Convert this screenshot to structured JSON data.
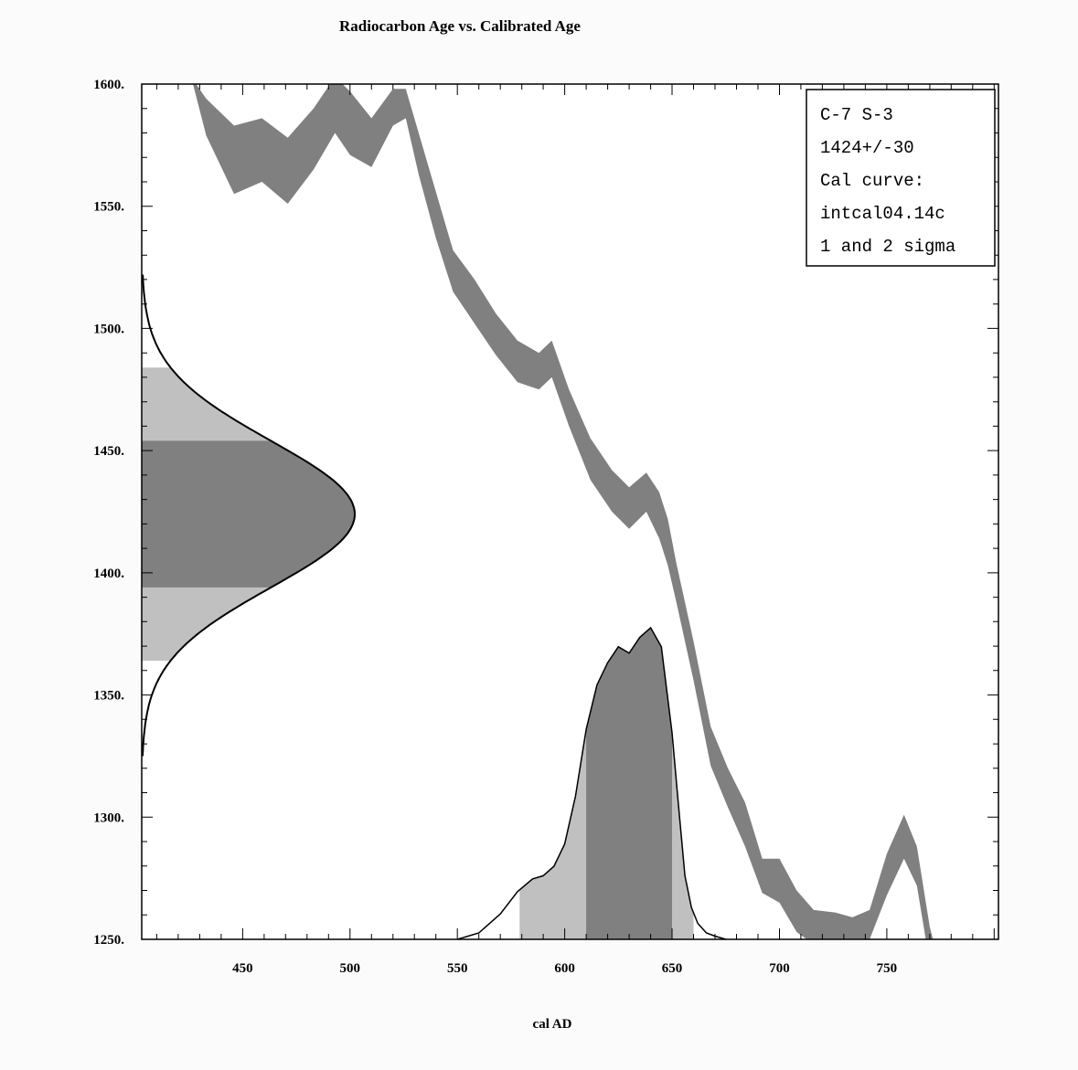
{
  "chart_data": {
    "type": "area",
    "title": "Radiocarbon Age vs. Calibrated Age",
    "xlabel": "cal AD",
    "ylabel": "",
    "xlim": [
      403,
      802
    ],
    "ylim": [
      1250,
      1600
    ],
    "x_ticks": [
      450,
      500,
      550,
      600,
      650,
      700,
      750
    ],
    "x_tick_labels": [
      "450",
      "500",
      "550",
      "600",
      "650",
      "700",
      "750"
    ],
    "y_ticks": [
      1250,
      1300,
      1350,
      1400,
      1450,
      1500,
      1550,
      1600
    ],
    "y_tick_labels": [
      "1250.",
      "1300.",
      "1350.",
      "1400.",
      "1450.",
      "1500.",
      "1550.",
      "1600."
    ],
    "grid": false,
    "legend": {
      "placement": "top-right",
      "lines": [
        "C-7 S-3",
        "1424+/-30",
        "Cal curve:",
        "intcal04.14c",
        "1 and 2 sigma"
      ]
    },
    "colors": {
      "curve_band": "#808080",
      "one_sigma": "#808080",
      "two_sigma": "#c0c0c0",
      "outline": "#000000",
      "background": "#ffffff"
    },
    "radiocarbon_age": {
      "mean": 1424,
      "sigma": 30,
      "one_sigma_range": [
        1394,
        1454
      ],
      "two_sigma_range": [
        1364,
        1484
      ]
    },
    "calibration_curve": {
      "x": [
        426,
        433,
        446,
        459,
        471,
        483,
        493,
        500,
        510,
        520,
        526,
        532,
        540,
        548,
        558,
        568,
        578,
        588,
        594,
        602,
        612,
        622,
        630,
        638,
        644,
        648,
        652,
        660,
        668,
        676,
        684,
        692,
        700,
        708,
        716,
        726,
        734,
        742,
        750,
        758,
        764,
        770,
        776
      ],
      "upper": [
        1603,
        1594,
        1583,
        1586,
        1578,
        1590,
        1603,
        1597,
        1586,
        1598,
        1598,
        1580,
        1556,
        1532,
        1520,
        1506,
        1495,
        1490,
        1495,
        1475,
        1455,
        1442,
        1435,
        1441,
        1433,
        1422,
        1404,
        1372,
        1337,
        1320,
        1306,
        1283,
        1283,
        1270,
        1262,
        1261,
        1259,
        1262,
        1285,
        1301,
        1288,
        1255,
        1235
      ],
      "lower": [
        1603,
        1579,
        1555,
        1560,
        1551,
        1565,
        1580,
        1571,
        1566,
        1583,
        1586,
        1563,
        1537,
        1515,
        1502,
        1489,
        1478,
        1475,
        1480,
        1460,
        1438,
        1425,
        1418,
        1425,
        1414,
        1403,
        1388,
        1356,
        1321,
        1304,
        1288,
        1269,
        1265,
        1253,
        1248,
        1243,
        1244,
        1250,
        1268,
        1283,
        1272,
        1240,
        1220
      ]
    },
    "calibrated_distribution": {
      "x": [
        550,
        560,
        570,
        578,
        585,
        590,
        595,
        600,
        605,
        610,
        615,
        620,
        625,
        630,
        635,
        640,
        645,
        650,
        653,
        656,
        659,
        662,
        666,
        670,
        675
      ],
      "density": [
        0,
        0.02,
        0.08,
        0.15,
        0.19,
        0.2,
        0.23,
        0.3,
        0.45,
        0.66,
        0.8,
        0.87,
        0.92,
        0.9,
        0.95,
        0.98,
        0.92,
        0.65,
        0.42,
        0.2,
        0.1,
        0.05,
        0.02,
        0.01,
        0
      ],
      "one_sigma_range": [
        610,
        650
      ],
      "two_sigma_range": [
        579,
        660
      ]
    }
  }
}
